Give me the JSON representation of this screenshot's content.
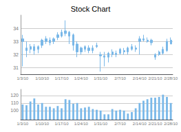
{
  "chart_data": [
    {
      "type": "candlestick",
      "title": "Stock Chart",
      "categories": [
        "1/3/10",
        null,
        null,
        null,
        null,
        "1/10/10",
        null,
        null,
        null,
        null,
        "1/17/10",
        null,
        null,
        null,
        null,
        "1/24/10",
        null,
        null,
        null,
        null,
        "1/31/10",
        null,
        null,
        null,
        null,
        "2/7/10",
        null,
        null,
        null,
        null,
        "2/14/10",
        null,
        null,
        null,
        "2/21/10",
        null,
        null,
        null,
        "2/28/10"
      ],
      "open": [
        33.2,
        32.5,
        32.4,
        32.6,
        32.4,
        32.7,
        33.0,
        33.1,
        33.0,
        33.3,
        33.4,
        33.6,
        33.7,
        33.5,
        32.8,
        32.2,
        32.4,
        32.5,
        32.5,
        32.6,
        32.0,
        31.9,
        31.8,
        32.0,
        32.1,
        32.1,
        32.3,
        32.2,
        32.4,
        32.5,
        33.2,
        33.1,
        33.0,
        33.1,
        31.8,
        32.0,
        32.1,
        32.3,
        32.8
      ],
      "close": [
        33.0,
        32.3,
        32.6,
        32.3,
        32.6,
        33.1,
        33.2,
        32.9,
        33.2,
        33.5,
        33.7,
        33.8,
        33.4,
        32.7,
        32.2,
        32.5,
        32.6,
        32.3,
        32.3,
        32.7,
        31.9,
        31.8,
        32.1,
        32.2,
        32.0,
        32.4,
        32.2,
        32.5,
        32.6,
        32.4,
        33.0,
        33.2,
        33.1,
        32.9,
        32.0,
        32.2,
        32.4,
        33.0,
        33.1
      ],
      "high": [
        33.5,
        33.0,
        32.8,
        32.8,
        32.7,
        33.2,
        33.4,
        33.3,
        33.3,
        33.7,
        33.9,
        34.6,
        33.8,
        33.6,
        33.0,
        32.6,
        32.7,
        32.7,
        32.7,
        32.9,
        32.2,
        32.2,
        32.2,
        32.4,
        32.3,
        32.5,
        32.5,
        32.6,
        32.8,
        32.7,
        33.4,
        33.5,
        33.3,
        33.2,
        32.1,
        32.3,
        32.6,
        33.2,
        33.3
      ],
      "low": [
        31.1,
        31.8,
        32.1,
        32.0,
        32.1,
        32.5,
        32.8,
        32.7,
        32.8,
        33.1,
        33.3,
        33.4,
        32.8,
        32.3,
        31.8,
        32.0,
        32.2,
        32.1,
        32.1,
        32.5,
        30.7,
        31.1,
        31.4,
        31.8,
        31.8,
        32.0,
        32.0,
        32.0,
        32.3,
        32.2,
        32.0,
        33.0,
        32.9,
        32.7,
        31.6,
        31.9,
        32.0,
        32.2,
        32.8
      ],
      "color": "#7ab8e8",
      "ylim": [
        30.5,
        35.0
      ],
      "yticks": [
        31,
        32,
        33,
        34
      ],
      "grid": true
    },
    {
      "type": "bar",
      "categories": [
        "1/3/10",
        null,
        null,
        null,
        null,
        "1/10/10",
        null,
        null,
        null,
        null,
        "1/17/10",
        null,
        null,
        null,
        null,
        "1/24/10",
        null,
        null,
        null,
        null,
        "1/31/10",
        null,
        null,
        null,
        null,
        "2/7/10",
        null,
        null,
        null,
        null,
        "2/14/10",
        null,
        null,
        null,
        "2/21/10",
        null,
        null,
        null,
        "2/28/10"
      ],
      "values": [
        108,
        107,
        112,
        116,
        108,
        110,
        105,
        105,
        103,
        106,
        103,
        115,
        114,
        109,
        110,
        103,
        104,
        105,
        102,
        101,
        100,
        95,
        95,
        102,
        100,
        101,
        100,
        96,
        98,
        103,
        110,
        113,
        115,
        117,
        117,
        118,
        121,
        118,
        110
      ],
      "color": "#7ab8e8",
      "ylim": [
        88,
        128
      ],
      "yticks": [
        100,
        110,
        120
      ],
      "grid": true
    }
  ]
}
